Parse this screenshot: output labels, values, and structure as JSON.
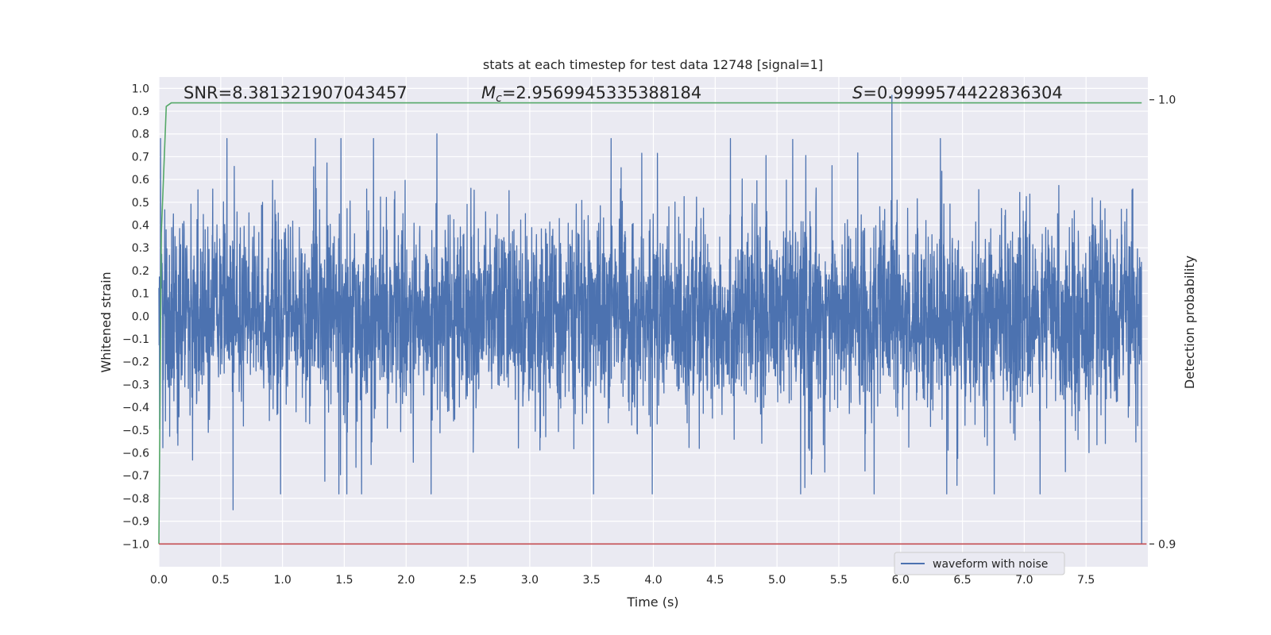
{
  "chart_data": {
    "type": "line",
    "title": "stats at each timestep for test data 12748 [signal=1]",
    "xlabel": "Time (s)",
    "ylabel": "Whitened strain",
    "y2label": "Detection probability",
    "xlim": [
      0,
      8
    ],
    "ylim": [
      -1.1,
      1.05
    ],
    "y2lim": [
      0.9,
      1.0
    ],
    "xticks": [
      "0.0",
      "0.5",
      "1.0",
      "1.5",
      "2.0",
      "2.5",
      "3.0",
      "3.5",
      "4.0",
      "4.5",
      "5.0",
      "5.5",
      "6.0",
      "6.5",
      "7.0",
      "7.5"
    ],
    "yticks": [
      "1.0",
      "0.9",
      "0.8",
      "0.7",
      "0.6",
      "0.5",
      "0.4",
      "0.3",
      "0.2",
      "0.1",
      "0.0",
      "-0.1",
      "-0.2",
      "-0.3",
      "-0.4",
      "-0.5",
      "-0.6",
      "-0.7",
      "-0.8",
      "-0.9",
      "-1.0"
    ],
    "y2ticks": [
      "1.0",
      "0.9"
    ],
    "grid": true,
    "legend_position": "lower-right",
    "annotations": {
      "snr": "SNR=8.381321907043457",
      "mc_symbol": "M",
      "mc_sub": "c",
      "mc_value": "=2.9569945335388184",
      "s_symbol": "S",
      "s_value": "=0.9999574422836304"
    },
    "series": [
      {
        "name": "waveform with noise",
        "color": "#4c72b0",
        "description_of_values": "whitened strain noise, roughly symmetric about 0, typical amplitude about 0.4, peaks near ±0.8",
        "x_range": [
          0,
          8
        ],
        "notable_points": [
          {
            "x": 0.6,
            "y": -0.85
          },
          {
            "x": 2.25,
            "y": 0.8
          },
          {
            "x": 5.93,
            "y": 0.97
          },
          {
            "x": 7.95,
            "y": -1.0
          }
        ]
      },
      {
        "color": "#55a868",
        "axis": "right",
        "x": [
          0,
          0.02,
          0.06,
          0.1,
          7.95
        ],
        "values": [
          0.9,
          0.97,
          0.9985,
          0.9993,
          0.9993
        ]
      },
      {
        "color": "#c44e52",
        "x": [
          0,
          8
        ],
        "values": [
          -1.0,
          -1.0
        ]
      }
    ]
  }
}
